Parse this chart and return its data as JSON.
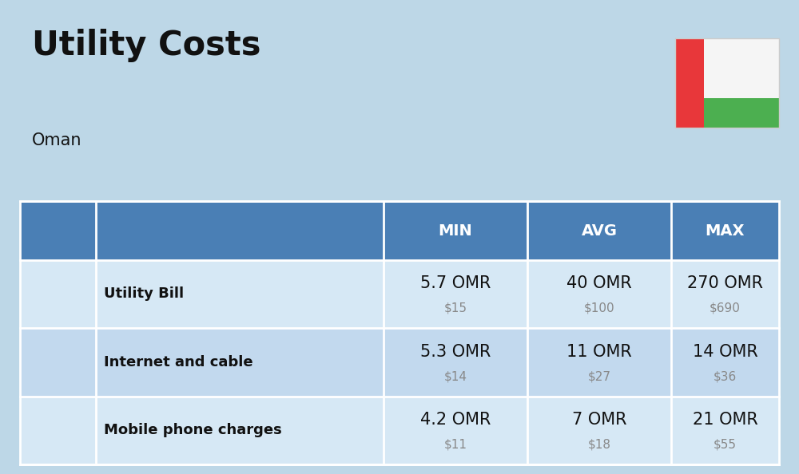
{
  "title": "Utility Costs",
  "subtitle": "Oman",
  "background_color": "#bdd7e7",
  "header_bg_color": "#4a7fb5",
  "header_text_color": "#ffffff",
  "row_bg_color_odd": "#d6e8f5",
  "row_bg_color_even": "#c2d9ee",
  "header_labels": [
    "MIN",
    "AVG",
    "MAX"
  ],
  "rows": [
    {
      "label": "Utility Bill",
      "min_omr": "5.7 OMR",
      "min_usd": "$15",
      "avg_omr": "40 OMR",
      "avg_usd": "$100",
      "max_omr": "270 OMR",
      "max_usd": "$690"
    },
    {
      "label": "Internet and cable",
      "min_omr": "5.3 OMR",
      "min_usd": "$14",
      "avg_omr": "11 OMR",
      "avg_usd": "$27",
      "max_omr": "14 OMR",
      "max_usd": "$36"
    },
    {
      "label": "Mobile phone charges",
      "min_omr": "4.2 OMR",
      "min_usd": "$11",
      "avg_omr": "7 OMR",
      "avg_usd": "$18",
      "max_omr": "21 OMR",
      "max_usd": "$55"
    }
  ],
  "title_fontsize": 30,
  "subtitle_fontsize": 15,
  "header_fontsize": 14,
  "label_fontsize": 13,
  "value_fontsize": 15,
  "usd_fontsize": 11,
  "usd_color": "#888888",
  "label_color": "#111111",
  "value_color": "#111111",
  "flag_red": "#e8373a",
  "flag_green": "#4caf50",
  "flag_white": "#f5f5f5",
  "divider_color": "#ffffff",
  "table_border_color": "#a0b8cc"
}
